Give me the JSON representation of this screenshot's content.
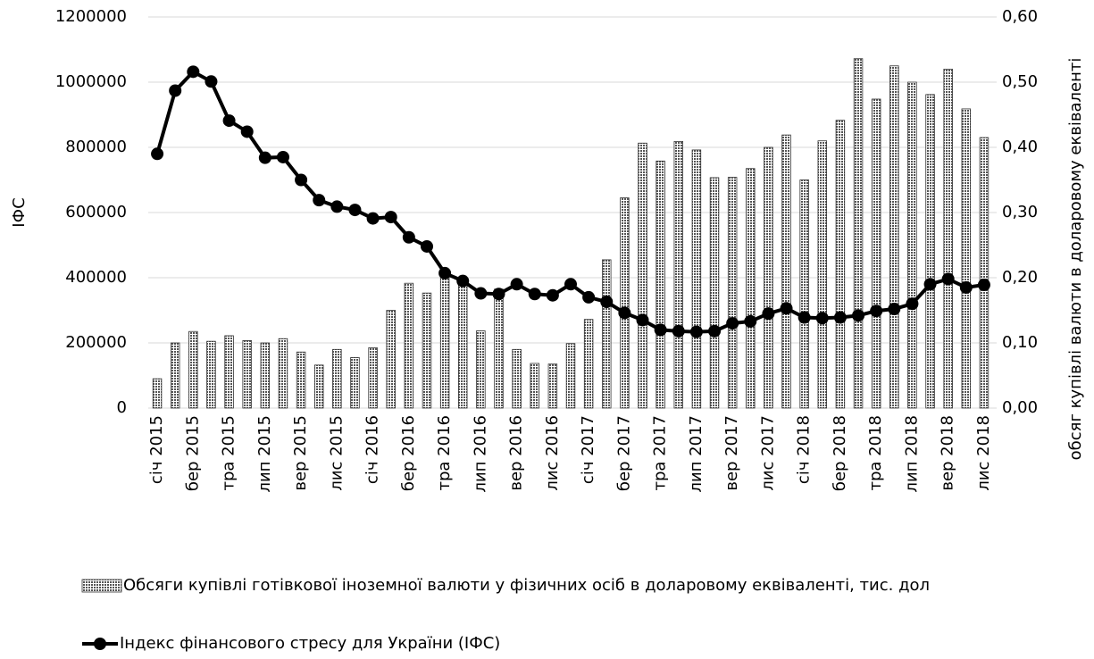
{
  "chart_data": {
    "type": "bar_line",
    "y_label": "ІФС",
    "y2_label": "обсяг купівлі валюти в доларовому еквіваленті",
    "categories": [
      "січ 2015",
      null,
      "бер 2015",
      null,
      "тра 2015",
      null,
      "лип 2015",
      null,
      "вер 2015",
      null,
      "лис 2015",
      null,
      "січ 2016",
      null,
      "бер 2016",
      null,
      "тра 2016",
      null,
      "лип 2016",
      null,
      "вер 2016",
      null,
      "лис 2016",
      null,
      "січ 2017",
      null,
      "бер 2017",
      null,
      "тра 2017",
      null,
      "лип 2017",
      null,
      "вер 2017",
      null,
      "лис 2017",
      null,
      "січ 2018",
      null,
      "бер 2018",
      null,
      "тра 2018",
      null,
      "лип 2018",
      null,
      "вер 2018",
      null,
      "лис 2018"
    ],
    "series": [
      {
        "name": "Обсяги купівлі готівкової іноземної валюти у фізичних осіб в доларовому еквіваленті, тис. дол",
        "type": "bar",
        "color": "#555555",
        "values": [
          90000,
          200000,
          235000,
          205000,
          222000,
          207000,
          200000,
          213000,
          172000,
          132000,
          180000,
          155000,
          185000,
          300000,
          383000,
          353000,
          410000,
          395000,
          237000,
          365000,
          180000,
          137000,
          135000,
          198000,
          272000,
          455000,
          645000,
          813000,
          758000,
          818000,
          792000,
          707000,
          708000,
          735000,
          800000,
          838000,
          700000,
          820000,
          883000,
          1072000,
          948000,
          1050000,
          1000000,
          962000,
          1040000,
          918000,
          830000
        ]
      },
      {
        "name": "Індекс фінансового стресу для України (ІФС)",
        "type": "line",
        "axis": "y2",
        "color": "#000000",
        "values": [
          0.39,
          0.487,
          0.516,
          0.501,
          0.441,
          0.424,
          0.384,
          0.385,
          0.35,
          0.319,
          0.309,
          0.304,
          0.291,
          0.293,
          0.262,
          0.248,
          0.207,
          0.195,
          0.176,
          0.175,
          0.19,
          0.175,
          0.173,
          0.19,
          0.17,
          0.163,
          0.146,
          0.135,
          0.12,
          0.118,
          0.117,
          0.118,
          0.13,
          0.133,
          0.145,
          0.153,
          0.139,
          0.138,
          0.139,
          0.142,
          0.149,
          0.152,
          0.16,
          0.19,
          0.198,
          0.185,
          0.189
        ]
      }
    ],
    "ylim": [
      0,
      1200000
    ],
    "yticks": [
      0,
      200000,
      400000,
      600000,
      800000,
      1000000,
      1200000
    ],
    "y2lim": [
      0,
      0.6
    ],
    "y2ticks": [
      {
        "value": 0,
        "label": "0,00"
      },
      {
        "value": 0.1,
        "label": "0,10"
      },
      {
        "value": 0.2,
        "label": "0,20"
      },
      {
        "value": 0.3,
        "label": "0,30"
      },
      {
        "value": 0.4,
        "label": "0,40"
      },
      {
        "value": 0.5,
        "label": "0,50"
      },
      {
        "value": 0.6,
        "label": "0,60"
      }
    ],
    "grid": true,
    "legend": "bottom"
  }
}
